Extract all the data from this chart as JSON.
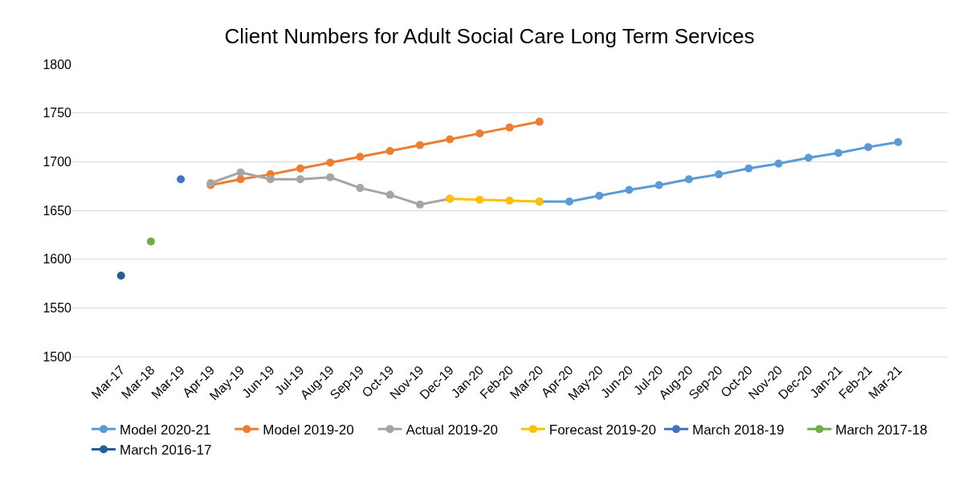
{
  "chart_data": {
    "type": "line",
    "title": "Client Numbers for Adult Social Care Long Term Services",
    "categories": [
      "Mar-17",
      "Mar-18",
      "Mar-19",
      "Apr-19",
      "May-19",
      "Jun-19",
      "Jul-19",
      "Aug-19",
      "Sep-19",
      "Oct-19",
      "Nov-19",
      "Dec-19",
      "Jan-20",
      "Feb-20",
      "Mar-20",
      "Apr-20",
      "May-20",
      "Jun-20",
      "Jul-20",
      "Aug-20",
      "Sep-20",
      "Oct-20",
      "Nov-20",
      "Dec-20",
      "Jan-21",
      "Feb-21",
      "Mar-21"
    ],
    "series": [
      {
        "name": "Model 2020-21",
        "color": "#5b9bd5",
        "values": [
          null,
          null,
          null,
          null,
          null,
          null,
          null,
          null,
          null,
          null,
          null,
          null,
          null,
          null,
          1659,
          1659,
          1665,
          1671,
          1676,
          1682,
          1687,
          1693,
          1698,
          1704,
          1709,
          1715,
          1720
        ]
      },
      {
        "name": "Model 2019-20",
        "color": "#ed7d31",
        "values": [
          null,
          null,
          null,
          1676,
          1682,
          1687,
          1693,
          1699,
          1705,
          1711,
          1717,
          1723,
          1729,
          1735,
          1741,
          null,
          null,
          null,
          null,
          null,
          null,
          null,
          null,
          null,
          null,
          null,
          null
        ]
      },
      {
        "name": "Actual 2019-20",
        "color": "#a5a5a5",
        "values": [
          null,
          null,
          null,
          1678,
          1689,
          1682,
          1682,
          1684,
          1673,
          1666,
          1656,
          1662,
          null,
          null,
          null,
          null,
          null,
          null,
          null,
          null,
          null,
          null,
          null,
          null,
          null,
          null,
          null
        ]
      },
      {
        "name": "Forecast 2019-20",
        "color": "#ffc000",
        "values": [
          null,
          null,
          null,
          null,
          null,
          null,
          null,
          null,
          null,
          null,
          null,
          1662,
          1661,
          1660,
          1659,
          null,
          null,
          null,
          null,
          null,
          null,
          null,
          null,
          null,
          null,
          null,
          null
        ]
      },
      {
        "name": "March 2018-19",
        "color": "#4472c4",
        "values": [
          null,
          null,
          1682,
          null,
          null,
          null,
          null,
          null,
          null,
          null,
          null,
          null,
          null,
          null,
          null,
          null,
          null,
          null,
          null,
          null,
          null,
          null,
          null,
          null,
          null,
          null,
          null
        ]
      },
      {
        "name": "March 2017-18",
        "color": "#70ad47",
        "values": [
          null,
          1618,
          null,
          null,
          null,
          null,
          null,
          null,
          null,
          null,
          null,
          null,
          null,
          null,
          null,
          null,
          null,
          null,
          null,
          null,
          null,
          null,
          null,
          null,
          null,
          null,
          null
        ]
      },
      {
        "name": "March 2016-17",
        "color": "#255e91",
        "values": [
          1583,
          null,
          null,
          null,
          null,
          null,
          null,
          null,
          null,
          null,
          null,
          null,
          null,
          null,
          null,
          null,
          null,
          null,
          null,
          null,
          null,
          null,
          null,
          null,
          null,
          null,
          null
        ]
      }
    ],
    "ylim": [
      1500,
      1800
    ],
    "yticks": [
      1500,
      1550,
      1600,
      1650,
      1700,
      1750,
      1800
    ],
    "grid": "y",
    "legend": "bottom",
    "marker": "circle",
    "line_style": "solid"
  }
}
